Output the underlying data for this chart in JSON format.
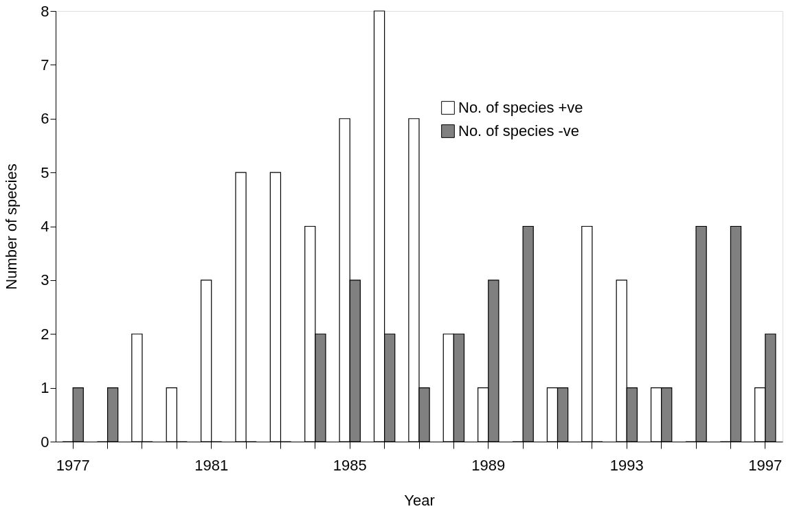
{
  "chart_data": {
    "type": "bar",
    "xlabel": "Year",
    "ylabel": "Number of species",
    "categories": [
      "1977",
      null,
      null,
      null,
      "1981",
      null,
      null,
      null,
      "1985",
      null,
      null,
      null,
      "1989",
      null,
      null,
      null,
      "1993",
      null,
      null,
      null,
      "1997"
    ],
    "series": [
      {
        "name": "No. of species +ve",
        "color": "#ffffff",
        "values": [
          0,
          0,
          2,
          1,
          3,
          5,
          5,
          4,
          6,
          8,
          6,
          2,
          1,
          0,
          1,
          4,
          3,
          1,
          0,
          0,
          1
        ]
      },
      {
        "name": "No. of species -ve",
        "color": "#808080",
        "values": [
          1,
          1,
          0,
          0,
          0,
          0,
          0,
          2,
          3,
          2,
          1,
          2,
          3,
          4,
          1,
          0,
          1,
          1,
          4,
          4,
          2
        ]
      }
    ],
    "ylim": [
      0,
      8
    ],
    "yticks": [
      0,
      1,
      2,
      3,
      4,
      5,
      6,
      7,
      8
    ],
    "grid": false,
    "legend": "top right"
  }
}
